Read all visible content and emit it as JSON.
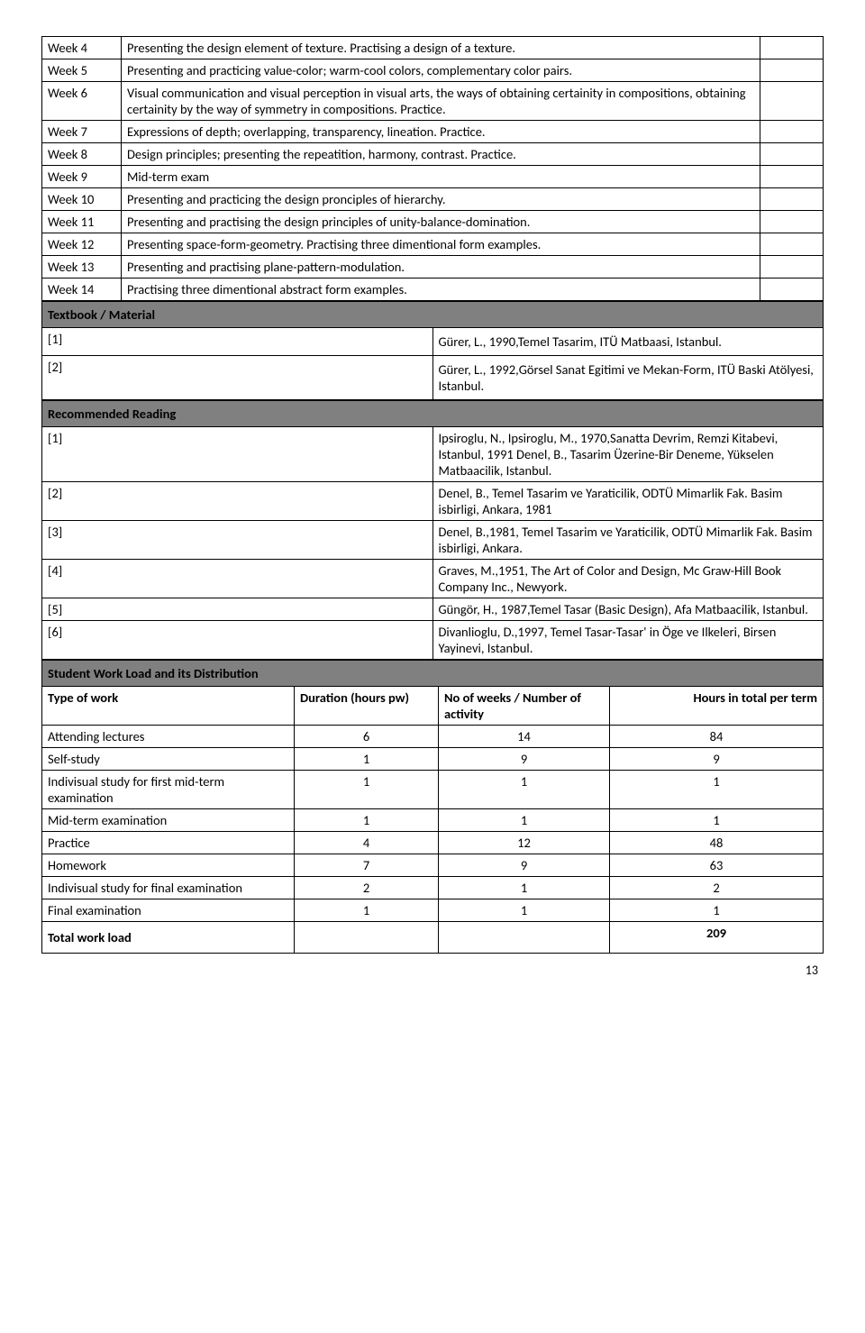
{
  "weeks": [
    {
      "label": "Week 4",
      "desc": "Presenting the design element of texture. Practising a design of a texture."
    },
    {
      "label": "Week 5",
      "desc": "Presenting and practicing value-color; warm-cool colors, complementary color pairs."
    },
    {
      "label": "Week 6",
      "desc": "Visual communication and visual perception in visual arts, the ways of obtaining certainity in compositions, obtaining certainity by the way of symmetry in compositions. Practice."
    },
    {
      "label": "Week 7",
      "desc": "Expressions of depth; overlapping, transparency, lineation. Practice."
    },
    {
      "label": "Week 8",
      "desc": "Design principles; presenting the repeatition, harmony, contrast. Practice."
    },
    {
      "label": "Week 9",
      "desc": "Mid-term exam"
    },
    {
      "label": "Week 10",
      "desc": "Presenting and practicing the design pronciples of hierarchy."
    },
    {
      "label": "Week 11",
      "desc": "Presenting and practising the design principles of unity-balance-domination."
    },
    {
      "label": "Week 12",
      "desc": "Presenting space-form-geometry. Practising three dimentional form examples."
    },
    {
      "label": "Week 13",
      "desc": "Presenting and practising plane-pattern-modulation."
    },
    {
      "label": "Week 14",
      "desc": "Practising three dimentional abstract form examples."
    }
  ],
  "textbook_header": "Textbook / Material",
  "textbooks": [
    {
      "ref": "[1]",
      "text": "Gürer, L., 1990,Temel Tasarim, ITÜ Matbaasi, Istanbul."
    },
    {
      "ref": "[2]",
      "text": "Gürer, L., 1992,Görsel Sanat Egitimi ve Mekan-Form, ITÜ Baski Atölyesi, Istanbul."
    }
  ],
  "recreading_header": "Recommended Reading",
  "recreading": [
    {
      "ref": "[1]",
      "text": "Ipsiroglu, N., Ipsiroglu, M., 1970,Sanatta Devrim, Remzi Kitabevi, Istanbul, 1991 Denel, B., Tasarim Üzerine-Bir Deneme, Yükselen Matbaacilik, Istanbul."
    },
    {
      "ref": "[2]",
      "text": "Denel, B., Temel Tasarim ve Yaraticilik, ODTÜ Mimarlik Fak. Basim isbirligi, Ankara, 1981"
    },
    {
      "ref": "[3]",
      "text": "Denel, B.,1981, Temel Tasarim ve Yaraticilik, ODTÜ Mimarlik Fak. Basim isbirligi, Ankara."
    },
    {
      "ref": "[4]",
      "text": "Graves, M.,1951, The Art of Color and Design, Mc Graw-Hill Book Company Inc., Newyork."
    },
    {
      "ref": "[5]",
      "text": "Güngör, H., 1987,Temel Tasar (Basic Design), Afa Matbaacilik, Istanbul."
    },
    {
      "ref": "[6]",
      "text": "Divanlioglu, D.,1997, Temel Tasar-Tasar' in Öge ve Ilkeleri, Birsen Yayinevi, Istanbul."
    }
  ],
  "workload_header": "Student Work Load and its Distribution",
  "workload_columns": {
    "c1": "Type of work",
    "c2": "Duration (hours pw)",
    "c3": "No of weeks / Number of activity",
    "c4": "Hours in total per term"
  },
  "workload": [
    {
      "type": "Attending lectures",
      "dur": "6",
      "weeks": "14",
      "total": "84"
    },
    {
      "type": "Self-study",
      "dur": "1",
      "weeks": "9",
      "total": "9"
    },
    {
      "type": "Indivisual study  for first mid-term examination",
      "dur": "1",
      "weeks": "1",
      "total": "1"
    },
    {
      "type": "Mid-term examination",
      "dur": "1",
      "weeks": "1",
      "total": "1"
    },
    {
      "type": "Practice",
      "dur": "4",
      "weeks": "12",
      "total": "48"
    },
    {
      "type": "Homework",
      "dur": "7",
      "weeks": "9",
      "total": "63"
    },
    {
      "type": "Indivisual study  for final examination",
      "dur": "2",
      "weeks": "1",
      "total": "2"
    },
    {
      "type": "Final examination",
      "dur": "1",
      "weeks": "1",
      "total": "1"
    }
  ],
  "total_label": "Total work load",
  "total_value": "209",
  "page_number": "13"
}
